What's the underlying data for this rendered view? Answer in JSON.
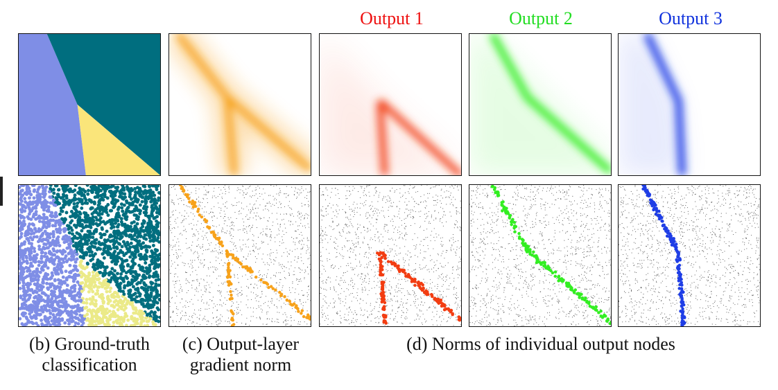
{
  "column_titles": [
    {
      "text": "Output 1",
      "color": "#ee1111"
    },
    {
      "text": "Output 2",
      "color": "#22dd22"
    },
    {
      "text": "Output 3",
      "color": "#1133dd"
    }
  ],
  "captions": {
    "b_line1": "(b) Ground-truth",
    "b_line2": "classification",
    "c_line1": "(c) Output-layer",
    "c_line2": "gradient norm",
    "d_line1": "(d) Norms of individual output nodes"
  },
  "colors": {
    "class_lavender": "#7f8ee6",
    "class_teal": "#006e7f",
    "class_yellow": "#fae57a",
    "class_yellow_points": "#ebea88",
    "gradient_orange": "#f7a21b",
    "output1_red": "#f23d12",
    "output2_green": "#33ee22",
    "output3_blue": "#1f3ee6",
    "background_points": "#555555"
  }
}
